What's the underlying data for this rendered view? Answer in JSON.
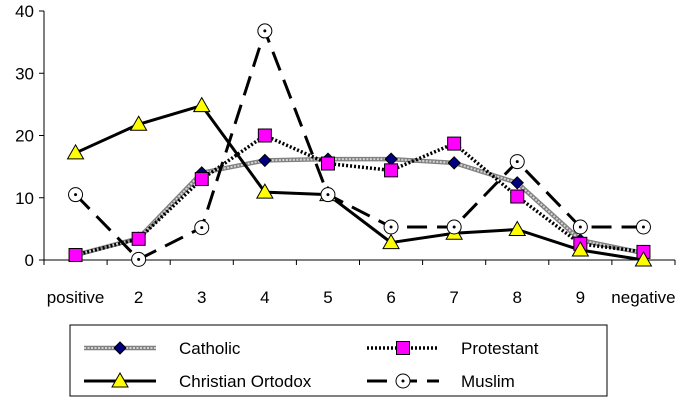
{
  "chart_data": {
    "type": "line",
    "title": "",
    "xlabel": "",
    "ylabel": "",
    "categories": [
      "positive",
      "2",
      "3",
      "4",
      "5",
      "6",
      "7",
      "8",
      "9",
      "negative"
    ],
    "ylim": [
      0,
      40
    ],
    "yticks": [
      0,
      10,
      20,
      30,
      40
    ],
    "grid": false,
    "legend_position": "bottom",
    "series": [
      {
        "name": "Catholic",
        "marker": "diamond",
        "line_style": "gray-double",
        "color": "#000080",
        "line_color": "#a0a0a0",
        "values": [
          0.8,
          3.5,
          14,
          16,
          16.2,
          16.2,
          15.6,
          12.4,
          3.2,
          1.1
        ]
      },
      {
        "name": "Protestant",
        "marker": "square",
        "line_style": "black-dotted-double",
        "color": "#ff00ff",
        "line_color": "#000000",
        "values": [
          0.8,
          3.4,
          13,
          20,
          15.5,
          14.4,
          18.7,
          10.2,
          2.6,
          1.3
        ]
      },
      {
        "name": "Christian Ortodox",
        "marker": "triangle",
        "line_style": "solid",
        "color": "#ffff00",
        "line_color": "#000000",
        "values": [
          17.2,
          21.8,
          24.8,
          10.9,
          10.5,
          2.8,
          4.3,
          4.9,
          1.6,
          0
        ]
      },
      {
        "name": "Muslim",
        "marker": "circle",
        "line_style": "dashed",
        "color": "#ffffff",
        "line_color": "#000000",
        "values": [
          10.5,
          0.1,
          5.2,
          36.8,
          10.5,
          5.3,
          5.3,
          15.8,
          5.3,
          5.3
        ]
      }
    ]
  }
}
